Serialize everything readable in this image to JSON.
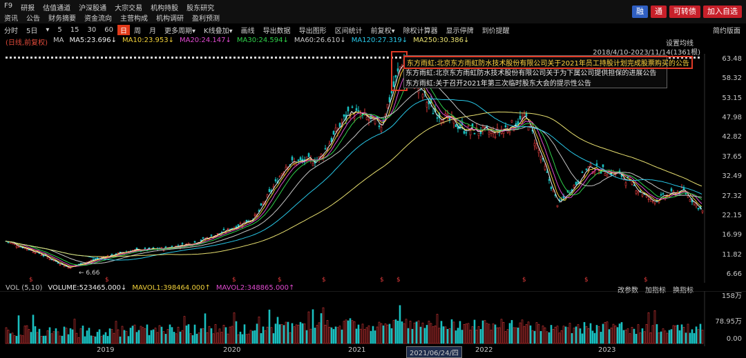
{
  "topnav": {
    "row1": [
      "F9",
      "研报",
      "估值通道",
      "沪深股通",
      "大宗交易",
      "机构持股",
      "股东研究"
    ],
    "row2": [
      "资讯",
      "公告",
      "财务摘要",
      "资金流向",
      "主营构成",
      "机构调研",
      "盈利预测"
    ],
    "buttons": [
      "融",
      "通",
      "可转债",
      "加入自选"
    ]
  },
  "toolbar": {
    "items": [
      "分时",
      "5日",
      "▾",
      "5",
      "15",
      "30",
      "60",
      "日",
      "周",
      "月",
      "更多周期▾",
      "K线叠加▾",
      "画线",
      "导出数据",
      "导出图形",
      "区间统计",
      "前复权▾",
      "除权计算器",
      "显示停牌",
      "到价提醒"
    ],
    "selected": "日",
    "right_label": "简约版面"
  },
  "ma_legend": [
    {
      "text": "(日线,前复权)",
      "color": "#e04a3a"
    },
    {
      "text": "MA",
      "color": "#c8c8c8"
    },
    {
      "text": "MA5:23.696↓",
      "color": "#f0f0f0"
    },
    {
      "text": "MA10:23.953↓",
      "color": "#f2d13a"
    },
    {
      "text": "MA20:24.147↓",
      "color": "#e04ad0"
    },
    {
      "text": "MA30:24.594↓",
      "color": "#2fd04a"
    },
    {
      "text": "MA60:26.610↓",
      "color": "#c8c8c8"
    },
    {
      "text": "MA120:27.319↓",
      "color": "#28c8e8"
    },
    {
      "text": "MA250:30.386↓",
      "color": "#e8e070"
    }
  ],
  "settings_label": "设置均线",
  "date_range": "2018/4/10-2023/11/14(1361根)",
  "announcements": [
    "东方雨虹:北京东方雨虹防水技术股份有限公司关于2021年员工持股计划完成股票购买的公告",
    "东方雨虹:北京东方雨虹防水技术股份有限公司关于为下属公司提供担保的进展公告",
    "东方雨虹:关于召开2021年第三次临时股东大会的提示性公告"
  ],
  "price_axis": [
    "63.48",
    "58.32",
    "53.15",
    "47.98",
    "42.82",
    "37.65",
    "32.49",
    "27.32",
    "22.15",
    "16.99",
    "11.82",
    "6.66"
  ],
  "low_label": "6.66",
  "volume": {
    "header": [
      {
        "text": "VOL (5,10)",
        "color": "#c8c8c8"
      },
      {
        "text": "VOLUME:523465.000↓",
        "color": "#f0f0f0"
      },
      {
        "text": "MAVOL1:398464.000↑",
        "color": "#f2d13a"
      },
      {
        "text": "MAVOL2:348865.000↑",
        "color": "#e04ad0"
      }
    ],
    "buttons": [
      "改参数",
      "加指标",
      "换指标"
    ],
    "axis": [
      "158万",
      "78.95万",
      "0.00"
    ]
  },
  "xaxis": {
    "years": [
      "2019",
      "2020",
      "2021",
      "2022",
      "2023"
    ],
    "cursor_date": "2021/06/24/四"
  },
  "chart_data": {
    "type": "candlestick",
    "ylim": [
      6.66,
      66
    ],
    "series": [
      {
        "name": "MA5",
        "value": 23.696
      },
      {
        "name": "MA10",
        "value": 23.953
      },
      {
        "name": "MA20",
        "value": 24.147
      },
      {
        "name": "MA30",
        "value": 24.594
      },
      {
        "name": "MA60",
        "value": 26.61
      },
      {
        "name": "MA120",
        "value": 27.319
      },
      {
        "name": "MA250",
        "value": 30.386
      }
    ],
    "approx_close_path": [
      {
        "x": "2018-04",
        "y": 15.5
      },
      {
        "x": "2018-07",
        "y": 12.5
      },
      {
        "x": "2018-10",
        "y": 8.5
      },
      {
        "x": "2019-01",
        "y": 11
      },
      {
        "x": "2019-04",
        "y": 13
      },
      {
        "x": "2019-07",
        "y": 13.5
      },
      {
        "x": "2019-10",
        "y": 15
      },
      {
        "x": "2020-01",
        "y": 18
      },
      {
        "x": "2020-04",
        "y": 22
      },
      {
        "x": "2020-07",
        "y": 36
      },
      {
        "x": "2020-10",
        "y": 37
      },
      {
        "x": "2021-01",
        "y": 50
      },
      {
        "x": "2021-04",
        "y": 46
      },
      {
        "x": "2021-06",
        "y": 63
      },
      {
        "x": "2021-09",
        "y": 50
      },
      {
        "x": "2021-12",
        "y": 45
      },
      {
        "x": "2022-03",
        "y": 44
      },
      {
        "x": "2022-06",
        "y": 48
      },
      {
        "x": "2022-09",
        "y": 25
      },
      {
        "x": "2022-12",
        "y": 35
      },
      {
        "x": "2023-03",
        "y": 33
      },
      {
        "x": "2023-06",
        "y": 26
      },
      {
        "x": "2023-09",
        "y": 29
      },
      {
        "x": "2023-11",
        "y": 23
      }
    ]
  },
  "colors": {
    "up": "#e03a3a",
    "down": "#19c0c0",
    "accent": "#e03a26"
  }
}
